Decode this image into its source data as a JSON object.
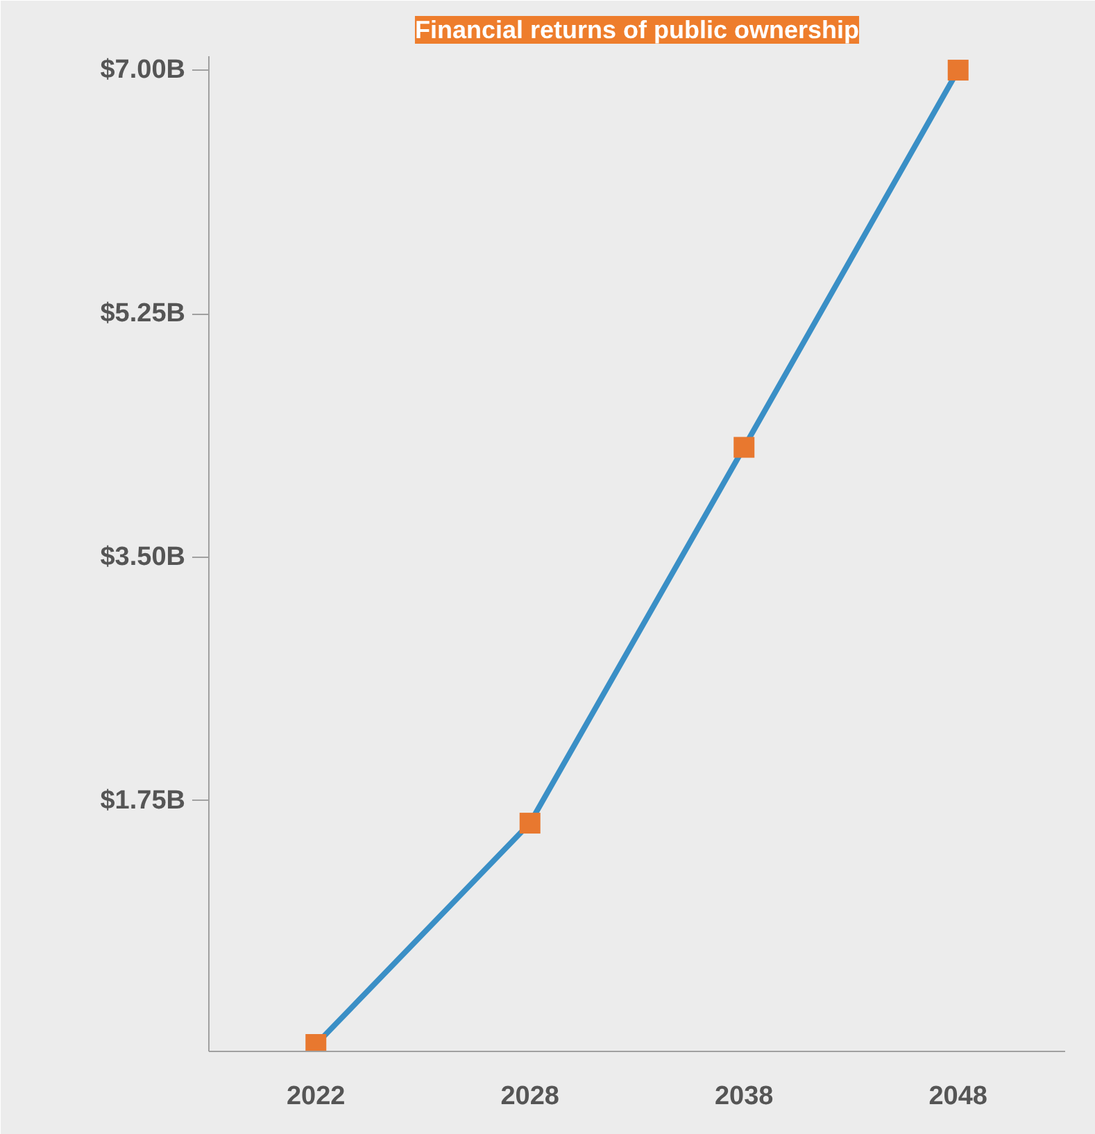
{
  "chart_data": {
    "type": "line",
    "title": "Financial returns of public ownership",
    "categories": [
      "2022",
      "2028",
      "2038",
      "2048"
    ],
    "series": [
      {
        "color": "#3a8fc6",
        "values": [
          0,
          1.59,
          4.29,
          7.0
        ],
        "marker": "none"
      },
      {
        "type": "scatter",
        "color": "#e8782f",
        "values": [
          0,
          1.59,
          4.29,
          7.0
        ]
      }
    ],
    "ylim": [
      -0.05,
      7.1
    ],
    "yticks": [
      {
        "value": 1.75,
        "label": "$1.75B"
      },
      {
        "value": 3.5,
        "label": "$3.50B"
      },
      {
        "value": 5.25,
        "label": "$5.25B"
      },
      {
        "value": 7.0,
        "label": "$7.00B"
      }
    ],
    "marker": "square",
    "grid": false
  }
}
